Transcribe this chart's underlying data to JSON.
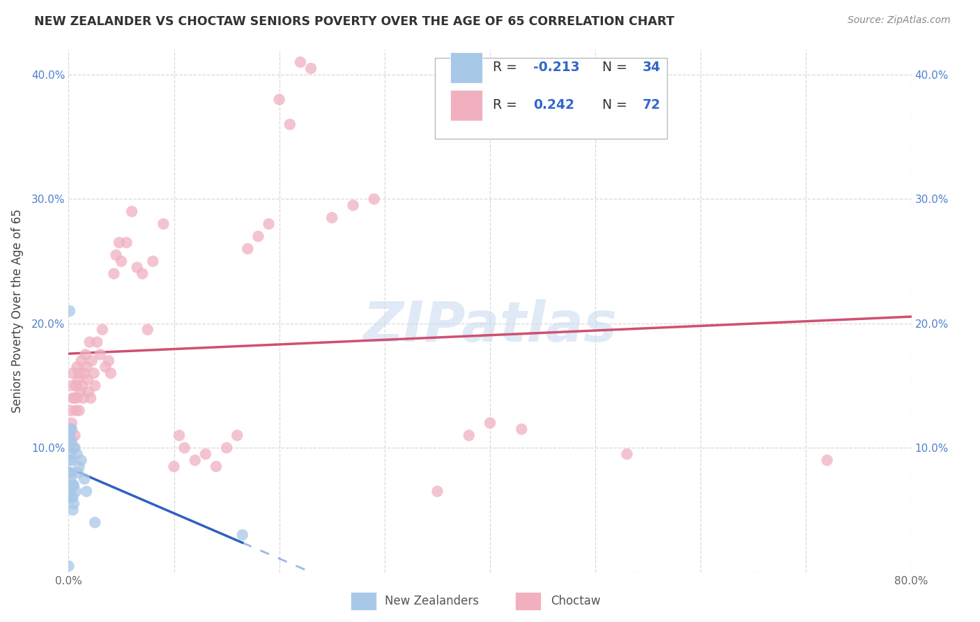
{
  "title": "NEW ZEALANDER VS CHOCTAW SENIORS POVERTY OVER THE AGE OF 65 CORRELATION CHART",
  "source": "Source: ZipAtlas.com",
  "ylabel": "Seniors Poverty Over the Age of 65",
  "xlim": [
    0.0,
    0.8
  ],
  "ylim": [
    0.0,
    0.42
  ],
  "xticks": [
    0.0,
    0.1,
    0.2,
    0.3,
    0.4,
    0.5,
    0.6,
    0.7,
    0.8
  ],
  "yticks": [
    0.0,
    0.1,
    0.2,
    0.3,
    0.4
  ],
  "background_color": "#ffffff",
  "grid_color": "#d8d8d8",
  "watermark": "ZIPatlas",
  "blue_color": "#a8c8e8",
  "pink_color": "#f0b0c0",
  "blue_line_color": "#3060c0",
  "pink_line_color": "#d05070",
  "nz_r": -0.213,
  "nz_n": 34,
  "choctaw_r": 0.242,
  "choctaw_n": 72,
  "nz_x": [
    0.0,
    0.001,
    0.001,
    0.001,
    0.001,
    0.001,
    0.001,
    0.001,
    0.002,
    0.002,
    0.002,
    0.002,
    0.002,
    0.003,
    0.003,
    0.003,
    0.003,
    0.003,
    0.003,
    0.004,
    0.004,
    0.004,
    0.005,
    0.005,
    0.006,
    0.007,
    0.008,
    0.009,
    0.01,
    0.012,
    0.015,
    0.017,
    0.025,
    0.165
  ],
  "nz_y": [
    0.005,
    0.06,
    0.07,
    0.08,
    0.09,
    0.1,
    0.11,
    0.21,
    0.065,
    0.075,
    0.095,
    0.105,
    0.115,
    0.06,
    0.07,
    0.08,
    0.09,
    0.105,
    0.115,
    0.05,
    0.06,
    0.07,
    0.055,
    0.07,
    0.1,
    0.065,
    0.095,
    0.08,
    0.085,
    0.09,
    0.075,
    0.065,
    0.04,
    0.03
  ],
  "choctaw_x": [
    0.001,
    0.001,
    0.002,
    0.003,
    0.003,
    0.004,
    0.004,
    0.005,
    0.005,
    0.006,
    0.007,
    0.007,
    0.008,
    0.008,
    0.009,
    0.01,
    0.01,
    0.011,
    0.012,
    0.013,
    0.014,
    0.015,
    0.016,
    0.017,
    0.018,
    0.019,
    0.02,
    0.021,
    0.022,
    0.024,
    0.025,
    0.027,
    0.03,
    0.032,
    0.035,
    0.038,
    0.04,
    0.043,
    0.045,
    0.048,
    0.05,
    0.055,
    0.06,
    0.065,
    0.07,
    0.075,
    0.08,
    0.09,
    0.1,
    0.105,
    0.11,
    0.12,
    0.13,
    0.14,
    0.15,
    0.16,
    0.17,
    0.18,
    0.19,
    0.2,
    0.21,
    0.22,
    0.23,
    0.25,
    0.27,
    0.29,
    0.35,
    0.38,
    0.4,
    0.43,
    0.53,
    0.72
  ],
  "choctaw_y": [
    0.08,
    0.11,
    0.13,
    0.12,
    0.15,
    0.14,
    0.16,
    0.1,
    0.14,
    0.11,
    0.13,
    0.15,
    0.14,
    0.165,
    0.155,
    0.13,
    0.16,
    0.145,
    0.17,
    0.15,
    0.14,
    0.16,
    0.175,
    0.165,
    0.155,
    0.145,
    0.185,
    0.14,
    0.17,
    0.16,
    0.15,
    0.185,
    0.175,
    0.195,
    0.165,
    0.17,
    0.16,
    0.24,
    0.255,
    0.265,
    0.25,
    0.265,
    0.29,
    0.245,
    0.24,
    0.195,
    0.25,
    0.28,
    0.085,
    0.11,
    0.1,
    0.09,
    0.095,
    0.085,
    0.1,
    0.11,
    0.26,
    0.27,
    0.28,
    0.38,
    0.36,
    0.41,
    0.405,
    0.285,
    0.295,
    0.3,
    0.065,
    0.11,
    0.12,
    0.115,
    0.095,
    0.09
  ]
}
